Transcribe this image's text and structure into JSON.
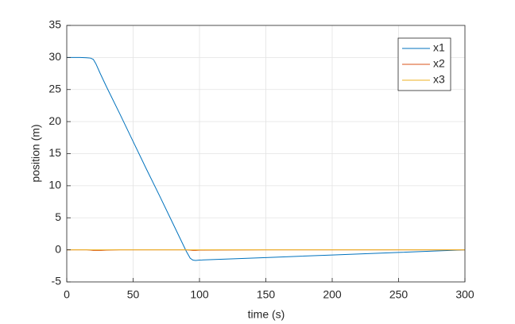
{
  "chart_data": {
    "type": "line",
    "x": [
      0,
      10,
      15,
      18,
      20,
      22,
      25,
      30,
      40,
      50,
      60,
      70,
      80,
      90,
      93,
      95,
      97,
      100,
      150,
      200,
      250,
      300
    ],
    "series": [
      {
        "name": "x1",
        "color": "#0072BD",
        "values": [
          30,
          30,
          29.95,
          29.9,
          29.7,
          29.0,
          27.6,
          25.4,
          21.2,
          16.9,
          12.6,
          8.4,
          4.1,
          -0.2,
          -1.3,
          -1.6,
          -1.65,
          -1.6,
          -1.2,
          -0.8,
          -0.4,
          0
        ]
      },
      {
        "name": "x2",
        "color": "#D95319",
        "values": [
          0,
          0,
          0,
          -0.05,
          -0.1,
          -0.1,
          -0.1,
          -0.05,
          0,
          0,
          0,
          0,
          0,
          0,
          -0.05,
          -0.1,
          -0.1,
          -0.05,
          0,
          0,
          0,
          0
        ]
      },
      {
        "name": "x3",
        "color": "#EDB120",
        "values": [
          0,
          0,
          0,
          0,
          0,
          0,
          0,
          0,
          0,
          0,
          0,
          0,
          0,
          0,
          0,
          0,
          0,
          0,
          0,
          0,
          0,
          0
        ]
      }
    ],
    "xlabel": "time (s)",
    "ylabel": "position (m)",
    "xlim": [
      0,
      300
    ],
    "xticks": [
      0,
      50,
      100,
      150,
      200,
      250,
      300
    ],
    "ylim": [
      -5,
      35
    ],
    "yticks": [
      -5,
      0,
      5,
      10,
      15,
      20,
      25,
      30,
      35
    ],
    "grid": true,
    "legend": "northeast"
  }
}
